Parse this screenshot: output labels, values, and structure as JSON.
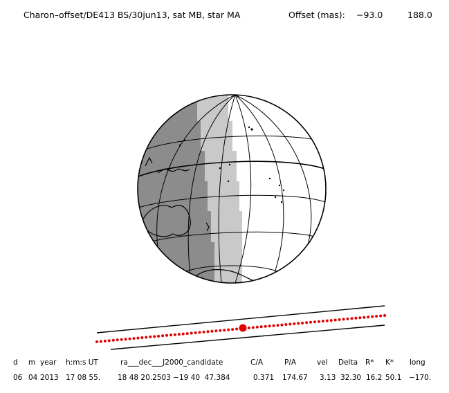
{
  "header": {
    "title": "Charon–offset/DE413 BS/30jun13, sat MB, star MA",
    "offset_label": "Offset (mas):",
    "offset_x": "−93.0",
    "offset_y": "188.0"
  },
  "colors": {
    "background": "#ffffff",
    "ink": "#000000",
    "night": "#8c8c8c",
    "twilight": "#c9c9c9",
    "day": "#ffffff",
    "track": "#e00000"
  },
  "table": {
    "headers": [
      "d",
      "m",
      "year",
      "h:m:s UT",
      "ra___dec___J2000_candidate",
      "C/A",
      "P/A",
      "vel",
      "Delta",
      "R*",
      "K*",
      "long"
    ],
    "values": [
      "06",
      "04",
      "2013",
      "17 08 55.",
      "18 48 20.2503 −19 40  47.384",
      "0.371",
      "174.67",
      "3.13",
      "32.30",
      "16.2",
      "50.1",
      "−170."
    ]
  }
}
